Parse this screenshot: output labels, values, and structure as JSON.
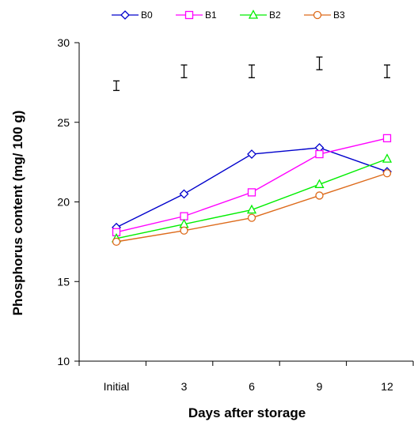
{
  "chart_data": {
    "type": "line",
    "title": "",
    "xlabel": "Days after storage",
    "ylabel": "Phosphorus content (mg/ 100 g)",
    "categories": [
      "Initial",
      "3",
      "6",
      "9",
      "12"
    ],
    "ylim": [
      10,
      30
    ],
    "yticks": [
      "10",
      "15",
      "20",
      "25",
      "30"
    ],
    "grid": false,
    "legend_position": "top",
    "series": [
      {
        "name": "B0",
        "color": "#0000cc",
        "marker": "diamond",
        "values": [
          18.4,
          20.5,
          23.0,
          23.4,
          21.9
        ]
      },
      {
        "name": "B1",
        "color": "#ff00ff",
        "marker": "square",
        "values": [
          18.1,
          19.1,
          20.6,
          23.0,
          24.0
        ]
      },
      {
        "name": "B2",
        "color": "#00ee00",
        "marker": "triangle",
        "values": [
          17.7,
          18.6,
          19.5,
          21.1,
          22.7
        ]
      },
      {
        "name": "B3",
        "color": "#dd6a1a",
        "marker": "circle",
        "values": [
          17.5,
          18.2,
          19.0,
          20.4,
          21.8
        ]
      }
    ],
    "error_bars": {
      "color": "#000000",
      "centers": [
        27.3,
        28.2,
        28.2,
        28.7,
        28.2
      ],
      "half_widths": [
        0.3,
        0.4,
        0.4,
        0.4,
        0.4
      ]
    }
  }
}
